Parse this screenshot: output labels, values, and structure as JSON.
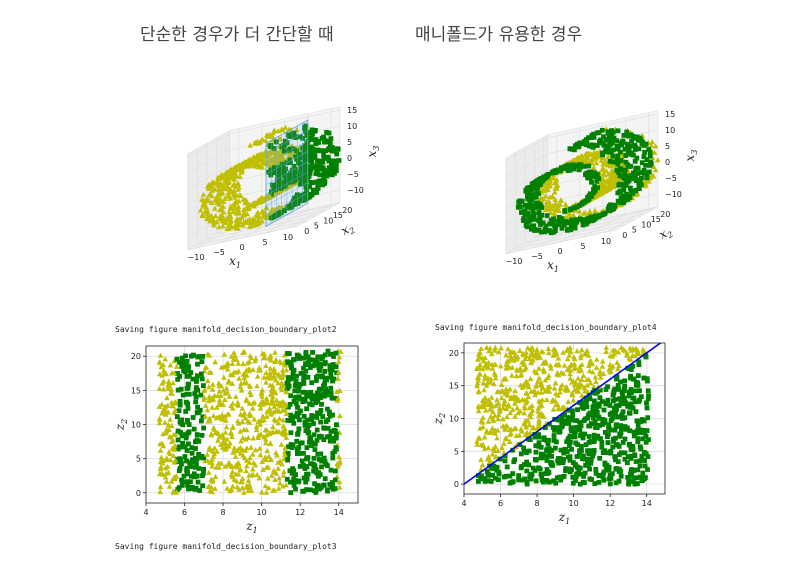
{
  "headings": {
    "left": "단순한 경우가 더 간단할 때",
    "right": "매니폴드가 유용한 경우"
  },
  "captions": {
    "plot2": "Saving figure manifold_decision_boundary_plot2",
    "plot4": "Saving figure manifold_decision_boundary_plot4",
    "plot3": "Saving figure manifold_decision_boundary_plot3"
  },
  "colors": {
    "class_green": "#008000",
    "class_yellow": "#bfbf00",
    "boundary_line": "#0000ff",
    "plane": "#6aa8e0"
  },
  "chart_data": [
    {
      "id": "swiss-roll-plane",
      "type": "scatter",
      "projection": "3d",
      "xlabel": "x1",
      "ylabel": "x2",
      "zlabel": "x3",
      "x_ticks": [
        "−10",
        "−5",
        "0",
        "5",
        "10"
      ],
      "y_ticks": [
        "0",
        "5",
        "10",
        "15",
        "20"
      ],
      "z_ticks": [
        "−10",
        "−5",
        "0",
        "5",
        "10",
        "15"
      ],
      "series": [
        {
          "marker": "square",
          "color": "#008000",
          "rule": "x1 > 5"
        },
        {
          "marker": "triangle",
          "color": "#bfbf00",
          "rule": "x1 <= 5"
        }
      ],
      "decision_plane": {
        "x1": 5
      }
    },
    {
      "id": "swiss-roll-manifold",
      "type": "scatter",
      "projection": "3d",
      "xlabel": "x1",
      "ylabel": "x2",
      "zlabel": "x3",
      "x_ticks": [
        "−10",
        "−5",
        "0",
        "5",
        "10"
      ],
      "y_ticks": [
        "0",
        "5",
        "10",
        "15",
        "20"
      ],
      "z_ticks": [
        "−10",
        "−5",
        "0",
        "5",
        "10",
        "15"
      ],
      "series": [
        {
          "marker": "square",
          "color": "#008000",
          "rule": "2(t−4) > z2"
        },
        {
          "marker": "triangle",
          "color": "#bfbf00",
          "rule": "2(t−4) <= z2"
        }
      ]
    },
    {
      "id": "unrolled-plane-boundary",
      "type": "scatter",
      "xlabel": "z1",
      "ylabel": "z2",
      "xlim": [
        4,
        15
      ],
      "ylim": [
        -1.5,
        21.5
      ],
      "x_ticks": [
        "4",
        "6",
        "8",
        "10",
        "12",
        "14"
      ],
      "y_ticks": [
        "0",
        "5",
        "10",
        "15",
        "20"
      ],
      "grid": true,
      "green_bands_z1": [
        [
          5.6,
          7.0
        ],
        [
          11.3,
          13.9
        ]
      ],
      "series": [
        {
          "name": "",
          "marker": "square",
          "color": "#008000"
        },
        {
          "name": "",
          "marker": "triangle",
          "color": "#bfbf00"
        }
      ],
      "z1_range": [
        4.7,
        14.1
      ],
      "z2_range": [
        0,
        20.8
      ]
    },
    {
      "id": "unrolled-manifold-boundary",
      "type": "scatter",
      "xlabel": "z1",
      "ylabel": "z2",
      "xlim": [
        4,
        15
      ],
      "ylim": [
        -1.5,
        21.5
      ],
      "x_ticks": [
        "4",
        "6",
        "8",
        "10",
        "12",
        "14"
      ],
      "y_ticks": [
        "0",
        "5",
        "10",
        "15",
        "20"
      ],
      "grid": true,
      "boundary": {
        "x": [
          4,
          15
        ],
        "y": [
          0,
          22
        ]
      },
      "series": [
        {
          "name": "",
          "marker": "square",
          "color": "#008000"
        },
        {
          "name": "",
          "marker": "triangle",
          "color": "#bfbf00"
        }
      ],
      "z1_range": [
        4.7,
        14.1
      ],
      "z2_range": [
        0,
        20.8
      ]
    }
  ]
}
